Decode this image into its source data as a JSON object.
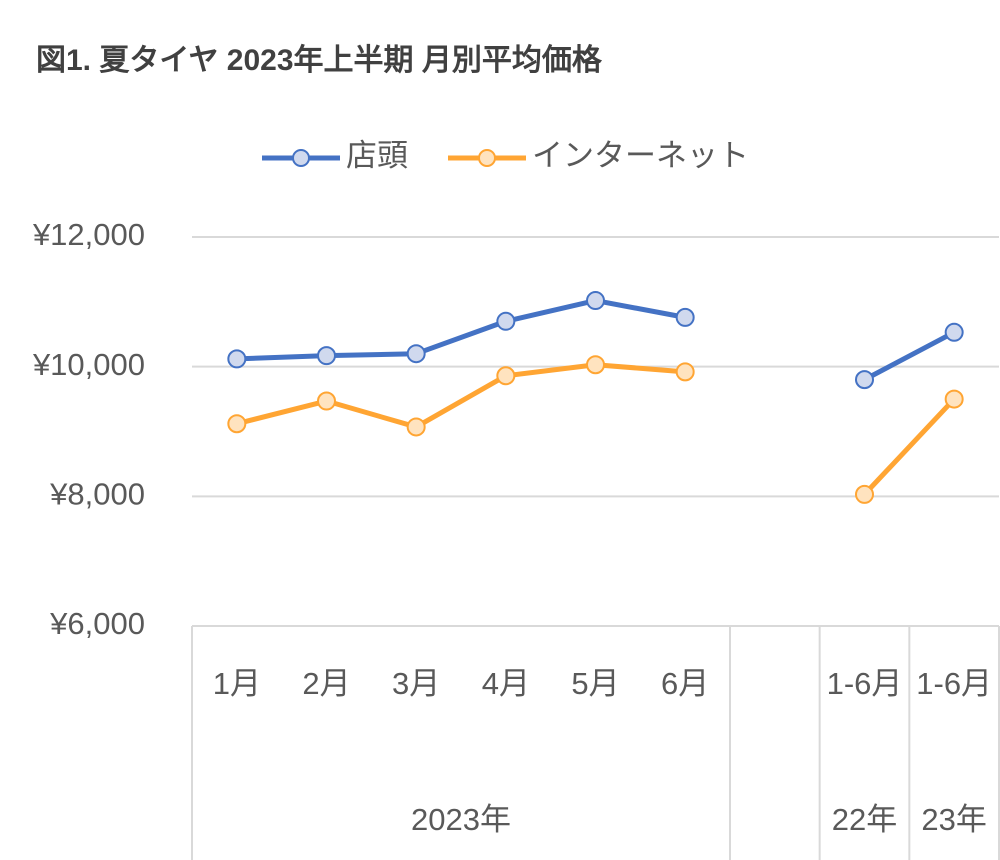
{
  "chart_data": {
    "type": "line",
    "title": "図1. 夏タイヤ 2023年上半期 月別平均価格",
    "categories": [
      "1月",
      "2月",
      "3月",
      "4月",
      "5月",
      "6月",
      null,
      "1-6月",
      "1-6月"
    ],
    "category_groups": [
      {
        "label": "2023年",
        "count": 6
      },
      {
        "label": null,
        "count": 1
      },
      {
        "label": "22年",
        "count": 1
      },
      {
        "label": "23年",
        "count": 1
      }
    ],
    "series": [
      {
        "name": "店頭",
        "color": "#4472c4",
        "marker_fill": "#d0d9ee",
        "values": [
          10120,
          10170,
          10200,
          10700,
          11020,
          10760,
          null,
          9800,
          10530
        ]
      },
      {
        "name": "インターネット",
        "color": "#ffa533",
        "marker_fill": "#ffe3bf",
        "values": [
          9120,
          9470,
          9070,
          9860,
          10030,
          9920,
          null,
          8030,
          9500
        ]
      }
    ],
    "ylim": [
      6000,
      12000
    ],
    "yticks": [
      {
        "value": 6000,
        "label": "¥6,000"
      },
      {
        "value": 8000,
        "label": "¥8,000"
      },
      {
        "value": 10000,
        "label": "¥10,000"
      },
      {
        "value": 12000,
        "label": "¥12,000"
      }
    ],
    "grid": true,
    "legend": "top"
  }
}
